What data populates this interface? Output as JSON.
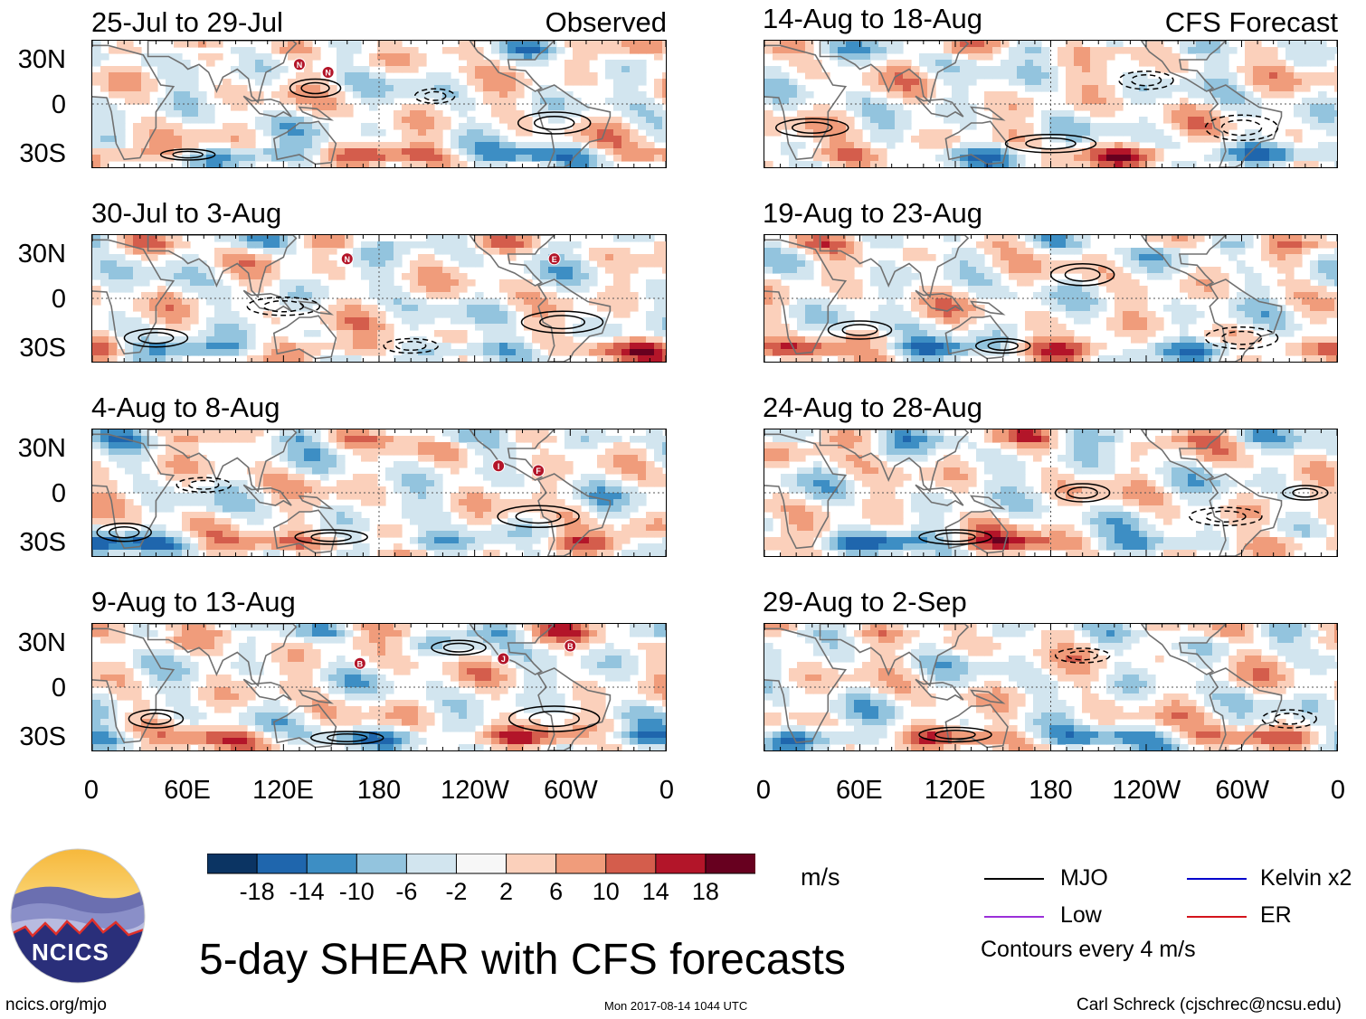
{
  "panels": {
    "observed": [
      {
        "date_range": "25-Jul to 29-Jul",
        "tag": "Observed"
      },
      {
        "date_range": "30-Jul to 3-Aug"
      },
      {
        "date_range": "4-Aug to 8-Aug"
      },
      {
        "date_range": "9-Aug to 13-Aug"
      }
    ],
    "forecast": [
      {
        "date_range": "14-Aug to 18-Aug",
        "tag": "CFS Forecast"
      },
      {
        "date_range": "19-Aug to 23-Aug"
      },
      {
        "date_range": "24-Aug to 28-Aug"
      },
      {
        "date_range": "29-Aug to 2-Sep"
      }
    ]
  },
  "storm_markers": [
    {
      "panel": "obs-1",
      "letters": [
        "N",
        "N"
      ]
    },
    {
      "panel": "obs-2",
      "letters": [
        "N",
        "E"
      ]
    },
    {
      "panel": "obs-3",
      "letters": [
        "I",
        "F"
      ]
    },
    {
      "panel": "obs-4",
      "letters": [
        "B",
        "J",
        "B"
      ]
    }
  ],
  "chart_data": {
    "type": "heatmap",
    "title": "5-day SHEAR with CFS forecasts",
    "variable": "SHEAR",
    "units": "m/s",
    "y_tick_labels": [
      "30N",
      "0",
      "30S"
    ],
    "x_tick_labels": [
      "0",
      "60E",
      "120E",
      "180",
      "120W",
      "60W",
      "0"
    ],
    "colorbar": {
      "tick_labels": [
        "-18",
        "-14",
        "-10",
        "-6",
        "-2",
        "2",
        "6",
        "10",
        "14",
        "18"
      ],
      "colors": [
        "#0b3463",
        "#1f66ad",
        "#3d8ec4",
        "#93c4de",
        "#d2e5ef",
        "#f7f7f7",
        "#fbd0bb",
        "#f09c7b",
        "#d45d4c",
        "#b31529",
        "#67001f"
      ]
    },
    "legend": [
      {
        "label": "MJO",
        "color": "#000000"
      },
      {
        "label": "Kelvin x2",
        "color": "#0000cd"
      },
      {
        "label": "Low",
        "color": "#9b30d9"
      },
      {
        "label": "ER",
        "color": "#d4141c"
      }
    ],
    "contour_note": "Contours every 4 m/s"
  },
  "footer": {
    "logo_text": "NCICS",
    "site": "ncics.org/mjo",
    "timestamp": "Mon 2017-08-14 1044 UTC",
    "author": "Carl Schreck (cjschrec@ncsu.edu)"
  }
}
